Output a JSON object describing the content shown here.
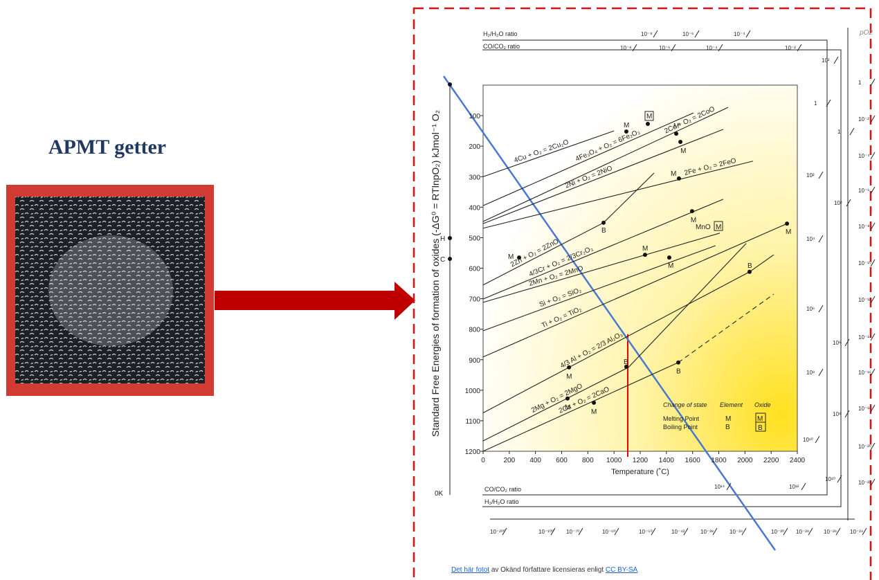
{
  "slide_title": "APMT getter",
  "credit": {
    "link1": "Det här fotot",
    "text": "av Okänd författare licensieras enligt",
    "link2": "CC BY-SA"
  },
  "chart_data": {
    "type": "line",
    "y_label": "Standard Free Energies of formation of oxides (-ΔG⁰ = RTlnpO₂)  kJmol⁻¹ O₂",
    "x_label": "Temperature (˚C)",
    "xlim": [
      0,
      2400
    ],
    "ylim": [
      0,
      1200
    ],
    "y_reversed": true,
    "xticks": [
      0,
      200,
      400,
      600,
      800,
      1000,
      1200,
      1400,
      1600,
      1800,
      2000,
      2200,
      2400
    ],
    "yticks": [
      100,
      200,
      300,
      400,
      500,
      600,
      700,
      800,
      900,
      1000,
      1100,
      1200
    ],
    "series": [
      {
        "name": "4Cu + O₂ = 2Cu₂O",
        "color": "#222222",
        "x": [
          0,
          1000
        ],
        "values": [
          300,
          150
        ]
      },
      {
        "name": "4Fe₃O₄ + O₂ = 6Fe₂O₃",
        "color": "#222222",
        "x": [
          0,
          1607
        ],
        "values": [
          395,
          91
        ]
      },
      {
        "name": "2Co + O₂ = 2CoO",
        "color": "#222222",
        "x": [
          0,
          1871
        ],
        "values": [
          447,
          73
        ]
      },
      {
        "name": "2Ni + O₂ = 2NiO",
        "color": "#222222",
        "x": [
          0,
          1834
        ],
        "values": [
          454,
          145
        ]
      },
      {
        "name": "2Fe + O₂ = 2FeO",
        "color": "#222222",
        "x": [
          0,
          2062
        ],
        "values": [
          469,
          249
        ]
      },
      {
        "name": "2Zn + O₂ = 2ZnO",
        "color": "#222222",
        "x": [
          0,
          920,
          1306
        ],
        "values": [
          655,
          451,
          288
        ]
      },
      {
        "name": "4/3Cr + O₂ = 2/3Cr₂O₃",
        "color": "#222222",
        "x": [
          0,
          1834
        ],
        "values": [
          701,
          374
        ]
      },
      {
        "name": "2Mn + O₂ = 2MnO",
        "color": "#222222",
        "x": [
          0,
          1808
        ],
        "values": [
          712,
          485
        ]
      },
      {
        "name": "Si + O₂ = SiO₂",
        "color": "#222222",
        "x": [
          0,
          1776
        ],
        "values": [
          805,
          526
        ]
      },
      {
        "name": "Ti + O₂ = TiO₂",
        "color": "#222222",
        "x": [
          0,
          2321
        ],
        "values": [
          891,
          454
        ]
      },
      {
        "name": "4/3 Al + O₂ = 2/3 Al₂O₃",
        "color": "#222222",
        "x": [
          0,
          2035,
          2220
        ],
        "values": [
          1074,
          612,
          556
        ]
      },
      {
        "name": "2Mg + O₂ = 2MgO",
        "color": "#222222",
        "x": [
          0,
          1110,
          2009
        ],
        "values": [
          1166,
          925,
          519
        ]
      },
      {
        "name": "2Ca + O₂ = 2CaO",
        "color": "#222222",
        "x": [
          0,
          1491,
          2220
        ],
        "values": [
          1200,
          909,
          685
        ],
        "dash_after_index": 1
      }
    ],
    "points": [
      {
        "x": 1094,
        "y": 152,
        "label": "M",
        "boxed": false
      },
      {
        "x": 1258,
        "y": 127,
        "label": "M",
        "boxed": true
      },
      {
        "x": 1475,
        "y": 159,
        "label": "M",
        "boxed": false
      },
      {
        "x": 1507,
        "y": 186,
        "label": "M",
        "boxed": false
      },
      {
        "x": 1496,
        "y": 306,
        "label": "M",
        "boxed": false
      },
      {
        "x": 275,
        "y": 565,
        "label": "M",
        "boxed": false
      },
      {
        "x": 920,
        "y": 451,
        "label": "B",
        "boxed": false
      },
      {
        "x": 1596,
        "y": 413,
        "label": "M",
        "boxed": false
      },
      {
        "x": 1237,
        "y": 556,
        "label": "M",
        "boxed": false
      },
      {
        "x": 1422,
        "y": 565,
        "label": "M",
        "boxed": false
      },
      {
        "x": 2321,
        "y": 454,
        "label": "M",
        "boxed": false
      },
      {
        "x": 656,
        "y": 925,
        "label": "M",
        "boxed": false
      },
      {
        "x": 2035,
        "y": 612,
        "label": "B",
        "boxed": false
      },
      {
        "x": 645,
        "y": 1027,
        "label": "M",
        "boxed": false
      },
      {
        "x": 1094,
        "y": 923,
        "label": "B",
        "boxed": false
      },
      {
        "x": 846,
        "y": 1041,
        "label": "M",
        "boxed": false
      },
      {
        "x": 1491,
        "y": 909,
        "label": "B",
        "boxed": false
      }
    ],
    "annotations": {
      "mno": "MnO",
      "mno_m": "M"
    },
    "legend": {
      "head": [
        "Change of state",
        "Element",
        "Oxide"
      ],
      "melting": [
        "Melting Point",
        "M",
        "M"
      ],
      "boiling": [
        "Boiling Point",
        "B",
        "B"
      ]
    },
    "nomogram": {
      "top_h": {
        "label": "H₂/H₂O ratio",
        "ticks": [
          "10⁻⁸",
          "10⁻⁶",
          "10⁻⁴"
        ]
      },
      "top_co": {
        "label": "CO/CO₂ ratio",
        "ticks": [
          "10⁻⁸",
          "10⁻⁶",
          "10⁻⁴",
          "10⁻²"
        ]
      },
      "po2": {
        "label": "pO2",
        "ticks": [
          "1",
          "10⁻²",
          "10⁻⁴",
          "10⁻⁶",
          "10⁻⁸",
          "10⁻¹⁰",
          "10⁻¹²",
          "10⁻¹⁴",
          "10⁻¹⁶",
          "10⁻¹⁸",
          "10⁻²⁰",
          "10⁻²²"
        ]
      },
      "right_co": [
        "1",
        "10²",
        "10⁴",
        "10⁶",
        "10⁸",
        "10¹⁰"
      ],
      "right_h": [
        "10²",
        "1",
        "10²",
        "10⁶",
        "10⁸",
        "10¹⁰"
      ],
      "bottom_co": {
        "label": "CO/CO₂ ratio",
        "ticks": [
          "10¹⁴",
          "10¹²"
        ]
      },
      "bottom_h": {
        "label": "H₂/H₂O ratio"
      },
      "bottom_scale": [
        "10⁻²⁰⁰",
        "10⁻¹⁰⁰",
        "10⁻⁷⁰",
        "10⁻⁶⁰",
        "10⁻⁵⁰",
        "10⁻⁴²",
        "10⁻³⁸",
        "10⁻³⁴",
        "10⁻³⁰",
        "10⁻²⁸",
        "10⁻²⁶",
        "10⁻²⁴"
      ],
      "left": {
        "h": "H",
        "c": "C",
        "zero": "0K"
      }
    }
  }
}
